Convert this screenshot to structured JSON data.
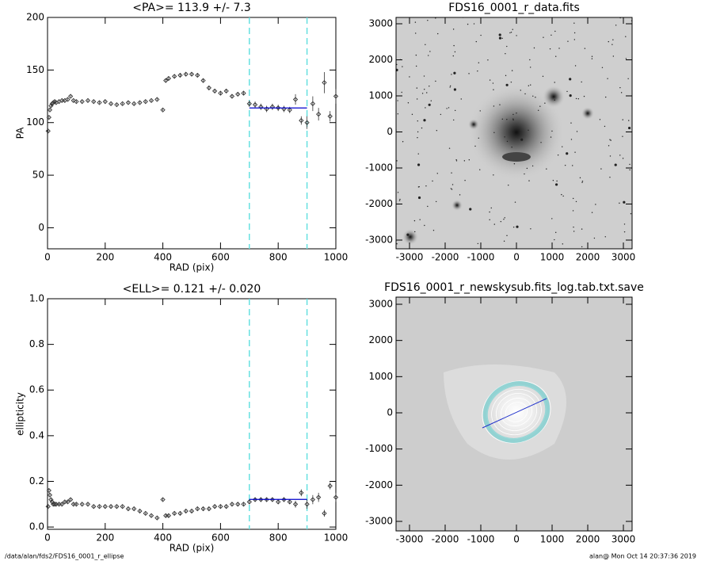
{
  "chart_data": [
    {
      "type": "scatter",
      "title": "<PA>= 113.9 +/-   7.3",
      "xlabel": "RAD (pix)",
      "ylabel": "PA",
      "xlim": [
        0,
        1000
      ],
      "ylim": [
        -20,
        200
      ],
      "xticks": [
        0,
        200,
        400,
        600,
        800,
        1000
      ],
      "yticks": [
        0,
        50,
        100,
        150,
        200
      ],
      "color": "#333333",
      "x": [
        2,
        5,
        8,
        12,
        16,
        20,
        25,
        30,
        40,
        50,
        60,
        70,
        80,
        90,
        100,
        120,
        140,
        160,
        180,
        200,
        220,
        240,
        260,
        280,
        300,
        320,
        340,
        360,
        380,
        400,
        410,
        420,
        440,
        460,
        480,
        500,
        520,
        540,
        560,
        580,
        600,
        620,
        640,
        660,
        680,
        700,
        720,
        740,
        760,
        780,
        800,
        820,
        840,
        860,
        880,
        900,
        920,
        940,
        960,
        980,
        1000
      ],
      "values": [
        92,
        105,
        112,
        116,
        118,
        119,
        120,
        119,
        120,
        121,
        121,
        122,
        125,
        121,
        120,
        120,
        121,
        120,
        119,
        120,
        118,
        117,
        118,
        119,
        118,
        119,
        120,
        121,
        122,
        112,
        140,
        142,
        144,
        145,
        146,
        146,
        145,
        140,
        133,
        130,
        128,
        130,
        125,
        127,
        128,
        118,
        117,
        115,
        113,
        115,
        114,
        113,
        112,
        122,
        102,
        100,
        118,
        108,
        138,
        106,
        125
      ],
      "errors": [
        1,
        1,
        1,
        1,
        1,
        1,
        1,
        1,
        1,
        1,
        1,
        1,
        1,
        1,
        1,
        1,
        1,
        1,
        1,
        1,
        1,
        1,
        1,
        1,
        1,
        1,
        1,
        1,
        1,
        1,
        1.5,
        1.5,
        1.5,
        1.5,
        1.5,
        1.5,
        1.5,
        1.5,
        1.5,
        1.5,
        1.5,
        1.5,
        1.5,
        1.5,
        1.5,
        3,
        3,
        3,
        3,
        3,
        3,
        3,
        3,
        5,
        4,
        6,
        7,
        6,
        10,
        5,
        7
      ],
      "vlines": [
        700,
        900
      ],
      "vline_color": "#66e0e0",
      "fit": {
        "x": [
          700,
          900
        ],
        "y": [
          113.9,
          113.9
        ],
        "color": "#0000cc"
      }
    },
    {
      "type": "scatter",
      "title": "<ELL>= 0.121 +/-  0.020",
      "xlabel": "RAD (pix)",
      "ylabel": "ellipticity",
      "xlim": [
        0,
        1000
      ],
      "ylim": [
        -0.01,
        1.0
      ],
      "xticks": [
        0,
        200,
        400,
        600,
        800,
        1000
      ],
      "yticks": [
        {
          "value": 0,
          "label": "0.0"
        },
        0.2,
        0.4,
        0.6,
        0.8,
        {
          "value": 1,
          "label": "1.0"
        }
      ],
      "color": "#333333",
      "x": [
        2,
        5,
        8,
        12,
        16,
        20,
        25,
        30,
        40,
        50,
        60,
        70,
        80,
        90,
        100,
        120,
        140,
        160,
        180,
        200,
        220,
        240,
        260,
        280,
        300,
        320,
        340,
        360,
        380,
        400,
        410,
        420,
        440,
        460,
        480,
        500,
        520,
        540,
        560,
        580,
        600,
        620,
        640,
        660,
        680,
        700,
        720,
        740,
        760,
        780,
        800,
        820,
        840,
        860,
        880,
        900,
        920,
        940,
        960,
        980,
        1000
      ],
      "values": [
        0.09,
        0.16,
        0.14,
        0.12,
        0.11,
        0.1,
        0.1,
        0.1,
        0.1,
        0.1,
        0.11,
        0.11,
        0.12,
        0.1,
        0.1,
        0.1,
        0.1,
        0.09,
        0.09,
        0.09,
        0.09,
        0.09,
        0.09,
        0.08,
        0.08,
        0.07,
        0.06,
        0.05,
        0.04,
        0.12,
        0.05,
        0.05,
        0.06,
        0.06,
        0.07,
        0.07,
        0.08,
        0.08,
        0.08,
        0.09,
        0.09,
        0.09,
        0.1,
        0.1,
        0.1,
        0.11,
        0.12,
        0.12,
        0.12,
        0.12,
        0.11,
        0.12,
        0.11,
        0.1,
        0.15,
        0.1,
        0.12,
        0.13,
        0.06,
        0.18,
        0.13
      ],
      "errors": [
        0.005,
        0.005,
        0.005,
        0.005,
        0.005,
        0.005,
        0.005,
        0.005,
        0.005,
        0.005,
        0.005,
        0.005,
        0.005,
        0.005,
        0.005,
        0.005,
        0.005,
        0.005,
        0.005,
        0.005,
        0.005,
        0.005,
        0.005,
        0.005,
        0.005,
        0.005,
        0.005,
        0.005,
        0.005,
        0.005,
        0.006,
        0.006,
        0.006,
        0.006,
        0.006,
        0.006,
        0.006,
        0.006,
        0.006,
        0.006,
        0.006,
        0.006,
        0.006,
        0.006,
        0.006,
        0.01,
        0.01,
        0.01,
        0.01,
        0.01,
        0.01,
        0.01,
        0.01,
        0.015,
        0.015,
        0.02,
        0.02,
        0.02,
        0.015,
        0.015,
        0.02
      ],
      "vlines": [
        700,
        900
      ],
      "vline_color": "#66e0e0",
      "fit": {
        "x": [
          700,
          900
        ],
        "y": [
          0.121,
          0.121
        ],
        "color": "#0000cc"
      }
    },
    {
      "type": "image",
      "title": "FDS16_0001_r_data.fits",
      "xlim": [
        -3378,
        3244
      ],
      "ylim": [
        -3242,
        3176
      ],
      "xticks": [
        -3000,
        -2000,
        -1000,
        0,
        1000,
        2000,
        3000
      ],
      "yticks": [
        -3000,
        -2000,
        -1000,
        0,
        1000,
        2000,
        3000
      ]
    },
    {
      "type": "image",
      "title": "FDS16_0001_r_newskysub.fits_log.tab.txt.save",
      "xlim": [
        -3378,
        3244
      ],
      "ylim": [
        -3263,
        3197
      ],
      "xticks": [
        -3000,
        -2000,
        -1000,
        0,
        1000,
        2000,
        3000
      ],
      "yticks": [
        -3000,
        -2000,
        -1000,
        0,
        1000,
        2000,
        3000
      ]
    }
  ],
  "footer": {
    "path": "/data/alan/fds2/FDS16_0001_r_ellipse",
    "stamp": "alan@  Mon Oct 14 20:37:36 2019"
  }
}
